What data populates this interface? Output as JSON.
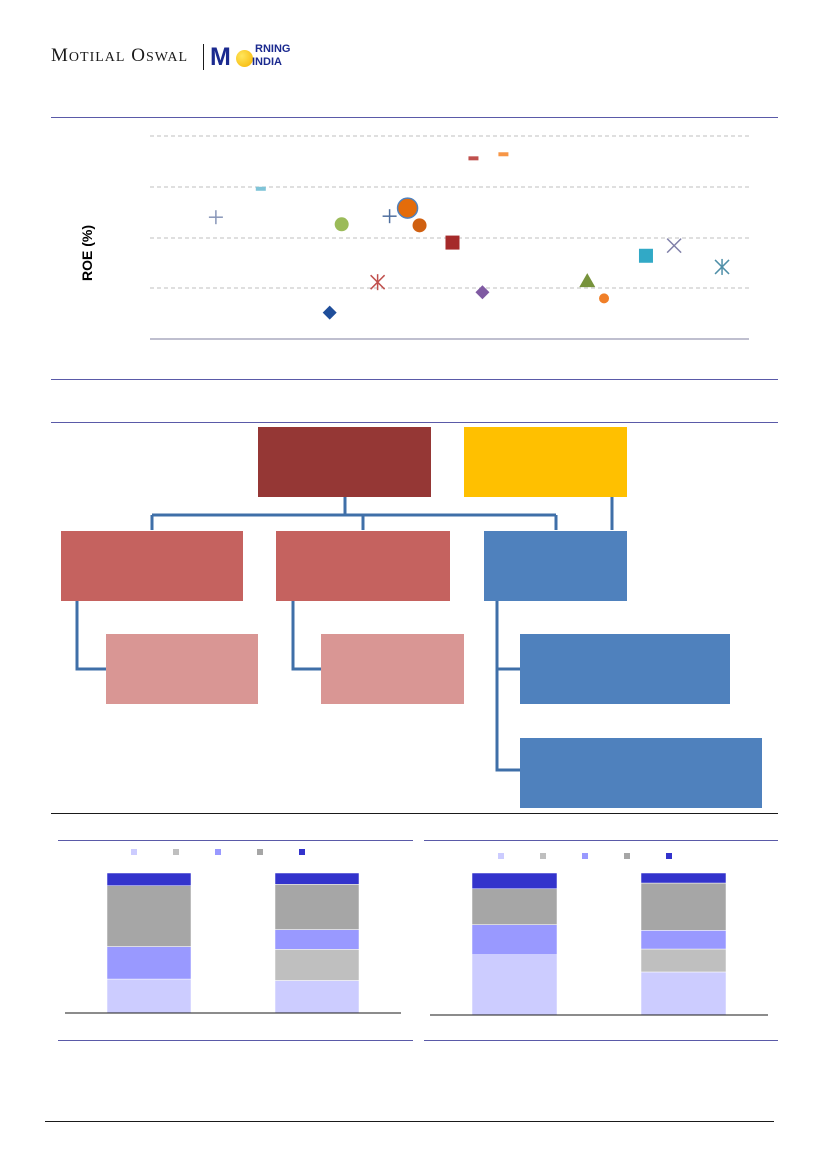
{
  "header": {
    "brand_first": "M",
    "brand_first_rest": "OTILAL",
    "brand_second": "O",
    "brand_second_rest": "SWAL",
    "product_m": "M",
    "product_rning": "RNING",
    "product_india": "INDIA"
  },
  "scatter": {
    "y_axis_label": "ROE (%)",
    "colors": {
      "grid": "#bfbfbf",
      "axis": "#7f7f9f"
    }
  },
  "org_chart": {
    "colors": {
      "root_primary": "#953735",
      "root_secondary": "#ffc000",
      "child_red": "#c0504d",
      "child_blue": "#4f81bd",
      "grandchild_red": "#d99694",
      "connector": "#3f6fa8"
    }
  },
  "bar_charts": {
    "colors": {
      "s1": "#ccccff",
      "s2": "#bfbfbf",
      "s3": "#9999ff",
      "s4": "#a6a6a6",
      "s5": "#3333cc"
    }
  },
  "chart_data": [
    {
      "type": "scatter",
      "ylabel": "ROE (%)",
      "xlabel": "",
      "grid": true,
      "points": [
        {
          "marker": "plus",
          "color": "#8896b8",
          "x": 0.11,
          "y": 0.6
        },
        {
          "marker": "dash",
          "color": "#7fc4d8",
          "x": 0.185,
          "y": 0.74
        },
        {
          "marker": "diamond",
          "color": "#1f4e9a",
          "x": 0.3,
          "y": 0.13
        },
        {
          "marker": "circle",
          "color": "#9bbb59",
          "x": 0.32,
          "y": 0.565
        },
        {
          "marker": "asterisk",
          "color": "#c0504d",
          "x": 0.38,
          "y": 0.28
        },
        {
          "marker": "plus",
          "color": "#4f6f9f",
          "x": 0.4,
          "y": 0.605
        },
        {
          "marker": "circle-big",
          "color": "#e46c0a",
          "x": 0.43,
          "y": 0.645
        },
        {
          "marker": "circle",
          "color": "#d06010",
          "x": 0.45,
          "y": 0.56
        },
        {
          "marker": "square",
          "color": "#a52a2a",
          "x": 0.505,
          "y": 0.475
        },
        {
          "marker": "dash",
          "color": "#c0504d",
          "x": 0.54,
          "y": 0.89
        },
        {
          "marker": "dash",
          "color": "#f79646",
          "x": 0.59,
          "y": 0.91
        },
        {
          "marker": "diamond",
          "color": "#7f5aa2",
          "x": 0.555,
          "y": 0.23
        },
        {
          "marker": "triangle",
          "color": "#77933c",
          "x": 0.73,
          "y": 0.285
        },
        {
          "marker": "circle",
          "color": "#f07f28",
          "x": 0.758,
          "y": 0.2
        },
        {
          "marker": "square",
          "color": "#31a9c6",
          "x": 0.828,
          "y": 0.41
        },
        {
          "marker": "cross",
          "color": "#7f7fa8",
          "x": 0.875,
          "y": 0.46
        },
        {
          "marker": "asterisk",
          "color": "#4f8fa8",
          "x": 0.955,
          "y": 0.355
        }
      ]
    },
    {
      "type": "bar",
      "stacked": true,
      "categories": [
        "",
        ""
      ],
      "series_colors": [
        "#ccccff",
        "#bfbfbf",
        "#9999ff",
        "#a6a6a6",
        "#3333cc"
      ],
      "stacks": [
        [
          24,
          0,
          23,
          43,
          9
        ],
        [
          23,
          22,
          14,
          32,
          8
        ]
      ]
    },
    {
      "type": "bar",
      "stacked": true,
      "categories": [
        "",
        ""
      ],
      "series_colors": [
        "#ccccff",
        "#bfbfbf",
        "#9999ff",
        "#a6a6a6",
        "#3333cc"
      ],
      "stacks": [
        [
          42,
          0,
          21,
          25,
          11
        ],
        [
          30,
          16,
          13,
          33,
          7
        ]
      ]
    }
  ]
}
